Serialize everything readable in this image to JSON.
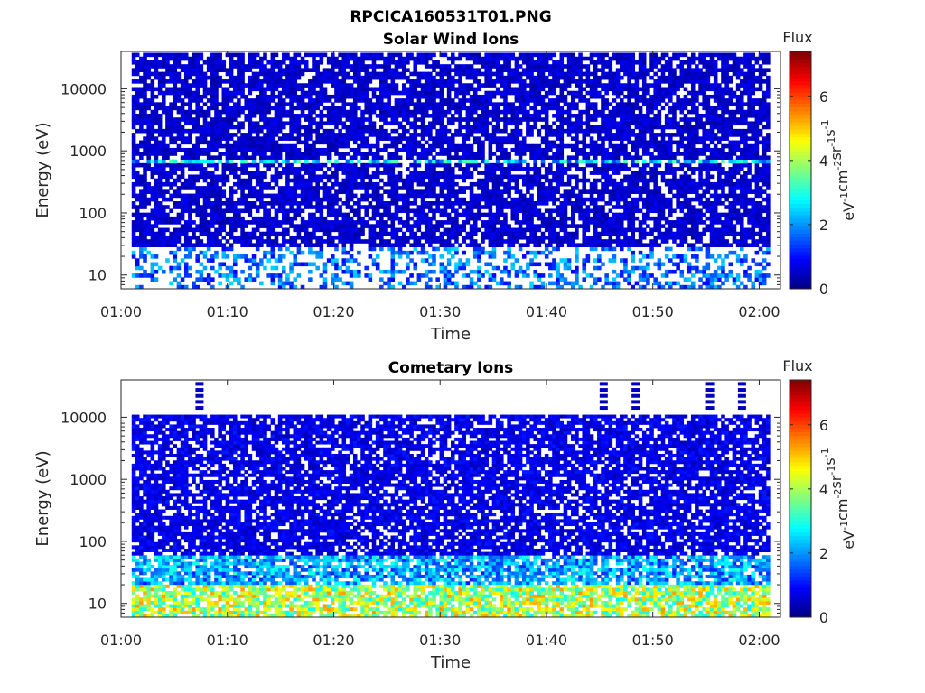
{
  "figure_title": "RPCICA160531T01.PNG",
  "colors": {
    "background": "#ffffff",
    "text": "#262626",
    "axis": "#262626",
    "colormap": "jet"
  },
  "chart_data": [
    {
      "type": "heatmap",
      "title": "Solar Wind Ions",
      "xlabel": "Time",
      "ylabel": "Energy (eV)",
      "x_ticks": [
        "01:00",
        "01:10",
        "01:20",
        "01:30",
        "01:40",
        "01:50",
        "02:00"
      ],
      "xlim": [
        "01:00",
        "02:02"
      ],
      "data_time_range": [
        "01:01",
        "02:01"
      ],
      "y_scale": "log",
      "y_ticks": [
        "10",
        "100",
        "1000",
        "10000"
      ],
      "ylim": [
        6,
        40000
      ],
      "colorbar": {
        "title": "Flux",
        "label": "eV-1cm-2sr-1s-1",
        "ticks": [
          "0",
          "2",
          "4",
          "6"
        ],
        "range": [
          0,
          7.4
        ]
      },
      "dominant_features": [
        {
          "energy_range_eV": [
            6,
            40000
          ],
          "flux": 0.6,
          "note": "patchy low-level background"
        },
        {
          "energy_range_eV": [
            550,
            700
          ],
          "flux": 2.5,
          "note": "recurrent enhancement near 600 eV"
        },
        {
          "energy_range_eV": [
            6,
            25
          ],
          "flux": 1.8,
          "note": "sparse low-energy patches"
        }
      ]
    },
    {
      "type": "heatmap",
      "title": "Cometary Ions",
      "xlabel": "Time",
      "ylabel": "Energy (eV)",
      "x_ticks": [
        "01:00",
        "01:10",
        "01:20",
        "01:30",
        "01:40",
        "01:50",
        "02:00"
      ],
      "xlim": [
        "01:00",
        "02:02"
      ],
      "data_time_range": [
        "01:01",
        "02:01"
      ],
      "y_scale": "log",
      "y_ticks": [
        "10",
        "100",
        "1000",
        "10000"
      ],
      "ylim": [
        6,
        40000
      ],
      "colorbar": {
        "title": "Flux",
        "label": "eV-1cm-2sr-1s-1",
        "ticks": [
          "0",
          "2",
          "4",
          "6"
        ],
        "range": [
          0,
          7.4
        ]
      },
      "dominant_features": [
        {
          "energy_range_eV": [
            6,
            11000
          ],
          "flux": 0.8,
          "note": "broad background"
        },
        {
          "energy_range_eV": [
            6,
            20
          ],
          "flux": 4.5,
          "note": "intense low-energy cometary ions"
        },
        {
          "energy_range_eV": [
            20,
            60
          ],
          "flux": 2.2,
          "note": "moderate flux"
        },
        {
          "energy_range_eV": [
            11000,
            35000
          ],
          "flux": 0.3,
          "note": "sporadic spikes"
        }
      ]
    }
  ]
}
